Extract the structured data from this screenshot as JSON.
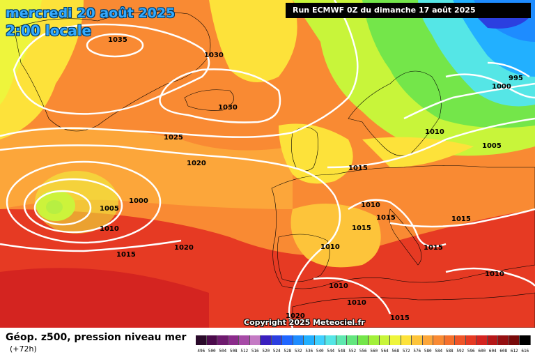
{
  "header": {
    "date": "mercredi 20 août 2025",
    "local_time": "2:00 locale",
    "run_info": "Run ECMWF 0Z du dimanche 17 août 2025"
  },
  "copyright": "Copyright 2025 Meteociel.fr",
  "footer": {
    "title": "Géop. z500, pression niveau mer",
    "subtitle": "(+72h)"
  },
  "legend": {
    "labels": [
      "496",
      "500",
      "504",
      "508",
      "512",
      "516",
      "520",
      "524",
      "528",
      "532",
      "536",
      "540",
      "544",
      "548",
      "552",
      "556",
      "560",
      "564",
      "568",
      "572",
      "576",
      "580",
      "584",
      "588",
      "592",
      "596",
      "600",
      "604",
      "608",
      "612",
      "616"
    ],
    "colors": [
      "#2a0a2a",
      "#4b0a4b",
      "#6e1a6e",
      "#8b2b8b",
      "#a64aa6",
      "#c47ac4",
      "#3a1fbf",
      "#2b3fe0",
      "#2066ff",
      "#1e8cff",
      "#22b0ff",
      "#3fd0ff",
      "#55e6e6",
      "#5fe8b0",
      "#63e67e",
      "#74e64a",
      "#a2f03a",
      "#c8f53a",
      "#eef53c",
      "#fde23a",
      "#fdc43a",
      "#fca63a",
      "#f98a33",
      "#f5702c",
      "#ef5528",
      "#e63a23",
      "#d42420",
      "#b51819",
      "#951012",
      "#770a0a",
      "#000000"
    ]
  },
  "pressure_labels": [
    "1035",
    "1030",
    "1030",
    "1025",
    "1020",
    "1000",
    "1005",
    "1010",
    "1015",
    "1020",
    "1015",
    "1010",
    "1015",
    "1015",
    "1010",
    "1000",
    "995",
    "1010",
    "1005",
    "1015",
    "1015",
    "1010",
    "1010",
    "1010",
    "1020",
    "1015"
  ],
  "colors": {
    "title_blue": "#33aaff",
    "isobar": "#ffffff",
    "coast": "#000000"
  }
}
